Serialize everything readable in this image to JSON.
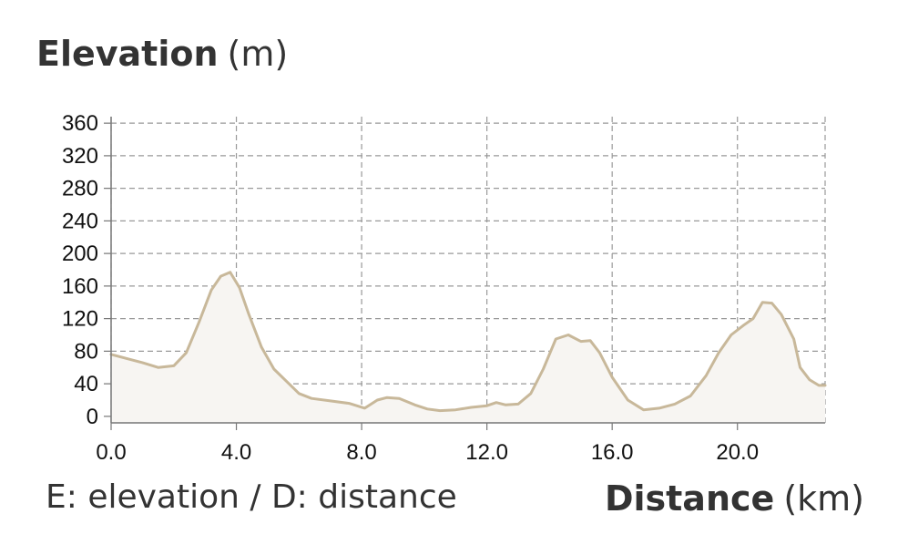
{
  "chart_data": {
    "type": "area",
    "title": "Elevation",
    "title_unit": "(m)",
    "xlabel": "Distance",
    "xlabel_unit": "(km)",
    "note": "E: elevation / D: distance",
    "xlim": [
      0,
      22.8
    ],
    "ylim": [
      -8,
      368
    ],
    "x_ticks": [
      0,
      4,
      8,
      12,
      16,
      20
    ],
    "x_tick_labels": [
      "0.0",
      "4.0",
      "8.0",
      "12.0",
      "16.0",
      "20.0"
    ],
    "y_ticks": [
      0,
      40,
      80,
      120,
      160,
      200,
      240,
      280,
      320,
      360
    ],
    "y_tick_labels": [
      "0",
      "40",
      "80",
      "120",
      "160",
      "200",
      "240",
      "280",
      "320",
      "360"
    ],
    "grid": true,
    "line_color": "#c8b89a",
    "fill_color": "#f7f5f2",
    "grid_color": "#999999",
    "series": [
      {
        "x": [
          0,
          0.5,
          1.0,
          1.5,
          2.0,
          2.4,
          2.8,
          3.2,
          3.5,
          3.8,
          4.1,
          4.4,
          4.8,
          5.2,
          5.6,
          6.0,
          6.4,
          7.0,
          7.6,
          8.1,
          8.5,
          8.8,
          9.2,
          9.7,
          10.1,
          10.5,
          11.0,
          11.5,
          12.0,
          12.3,
          12.6,
          13.0,
          13.4,
          13.8,
          14.2,
          14.6,
          15.0,
          15.3,
          15.6,
          16.0,
          16.5,
          17.0,
          17.5,
          18.0,
          18.5,
          19.0,
          19.4,
          19.8,
          20.2,
          20.5,
          20.8,
          21.1,
          21.4,
          21.8,
          22.0,
          22.3,
          22.6,
          22.8
        ],
        "y": [
          76,
          71,
          66,
          60,
          62,
          78,
          115,
          155,
          172,
          177,
          158,
          125,
          85,
          58,
          43,
          28,
          22,
          19,
          16,
          10,
          20,
          23,
          22,
          14,
          9,
          7,
          8,
          11,
          13,
          17,
          14,
          15,
          28,
          58,
          95,
          100,
          92,
          93,
          78,
          48,
          20,
          8,
          10,
          15,
          25,
          50,
          78,
          100,
          112,
          120,
          140,
          139,
          125,
          95,
          60,
          45,
          38,
          38
        ]
      }
    ]
  }
}
